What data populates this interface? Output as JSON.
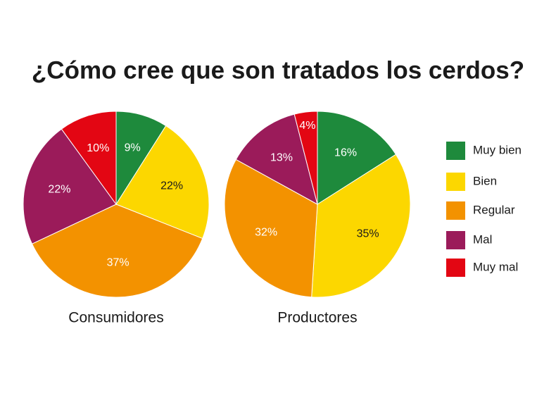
{
  "title": "¿Cómo cree que son tratados los cerdos?",
  "chart_data": [
    {
      "type": "pie",
      "title": "Consumidores",
      "categories": [
        "Muy bien",
        "Bien",
        "Regular",
        "Mal",
        "Muy mal"
      ],
      "values": [
        9,
        22,
        37,
        22,
        10
      ],
      "value_labels": [
        "9%",
        "22%",
        "37%",
        "22%",
        "10%"
      ],
      "colors": [
        "#1e8a3c",
        "#fcd700",
        "#f39200",
        "#9b1b5a",
        "#e30613"
      ]
    },
    {
      "type": "pie",
      "title": "Productores",
      "categories": [
        "Muy bien",
        "Bien",
        "Regular",
        "Mal",
        "Muy mal"
      ],
      "values": [
        16,
        35,
        32,
        13,
        4
      ],
      "value_labels": [
        "16%",
        "35%",
        "32%",
        "13%",
        "4%"
      ],
      "colors": [
        "#1e8a3c",
        "#fcd700",
        "#f39200",
        "#9b1b5a",
        "#e30613"
      ]
    }
  ]
}
